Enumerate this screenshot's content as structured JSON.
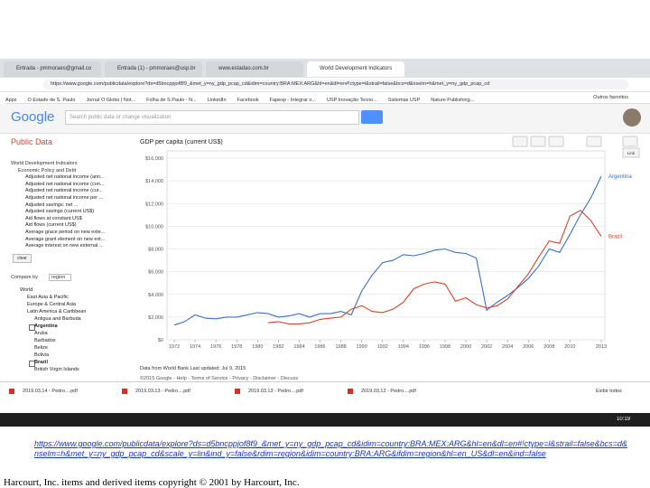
{
  "tabs": [
    "Entrada - pmmoraes@gmail.co",
    "Entrada (1) - pmmoraes@usp.br",
    "www.estadao.com.br",
    "World Development Indicators"
  ],
  "address": "https://www.google.com/publicdata/explore?ds=d5bncppjof8f9_&met_y=ny_gdp_pcap_cd&idim=country:BRA:MEX:ARG&hl=en&dl=en#!ctype=l&strail=false&bcs=d&nselm=h&met_y=ny_gdp_pcap_cd",
  "bookmarks": [
    "Apps",
    "O Estado de S. Paulo",
    "Jornal O Globo | Not...",
    "Folha de S.Paulo - N...",
    "LinkedIn",
    "Facebook",
    "Fapesp - Integrar o...",
    "USP Inovação Tecno...",
    "Sistemas USP",
    "Nature Publishing...",
    "Outros favoritos"
  ],
  "logo": "Google",
  "search_placeholder": "Search public data or change visualization",
  "brand": "Public Data",
  "tree": [
    "World Development Indicators",
    "Economic Policy and Debt",
    "Adjusted net national income (ann...",
    "Adjusted net national income (con...",
    "Adjusted net national income (cur...",
    "Adjusted net national income per ...",
    "Adjusted savings: net ...",
    "Adjusted savings (current US$)",
    "Aid flows at constant US$",
    "Aid flows (current US$)",
    "Average grace period on new exte...",
    "Average grant element on new ext...",
    "Average interest on new external ..."
  ],
  "clear": "clear",
  "compare_by": "Compare by",
  "compare_value": "region",
  "regions": [
    "World",
    "East Asia & Pacific",
    "Europe & Central Asia",
    "Latin America & Caribbean",
    "Antigua and Barbuda",
    "Argentina",
    "Aruba",
    "Barbados",
    "Belize",
    "Bolivia",
    "Brazil",
    "British Virgin Islands"
  ],
  "clear_selections": "Clear selections",
  "link": "Link",
  "chart_data": {
    "type": "line",
    "title": "GDP per capita (current US$)",
    "x": [
      1972,
      1973,
      1974,
      1975,
      1976,
      1977,
      1978,
      1979,
      1980,
      1981,
      1982,
      1983,
      1984,
      1985,
      1986,
      1987,
      1988,
      1989,
      1990,
      1991,
      1992,
      1993,
      1994,
      1995,
      1996,
      1997,
      1998,
      1999,
      2000,
      2001,
      2002,
      2003,
      2004,
      2005,
      2006,
      2007,
      2008,
      2009,
      2010,
      2011,
      2012,
      2013
    ],
    "xlim": [
      1972,
      2013
    ],
    "xticks": [
      1972,
      1974,
      1976,
      1978,
      1980,
      1982,
      1984,
      1986,
      1988,
      1990,
      1992,
      1994,
      1996,
      1998,
      2000,
      2002,
      2004,
      2006,
      2008,
      2010,
      2013
    ],
    "ylim": [
      0,
      16000
    ],
    "yticks": [
      {
        "value": 0,
        "label": "$0"
      },
      {
        "value": 2000,
        "label": "$2,000"
      },
      {
        "value": 4000,
        "label": "$4,000"
      },
      {
        "value": 6000,
        "label": "$6,000"
      },
      {
        "value": 8000,
        "label": "$8,000"
      },
      {
        "value": 10000,
        "label": "$10,000"
      },
      {
        "value": 12000,
        "label": "$12,000"
      },
      {
        "value": 14000,
        "label": "$14,000"
      },
      {
        "value": 16000,
        "label": "$16,000"
      }
    ],
    "grid": true,
    "series": [
      {
        "name": "Argentina",
        "color": "#3a6fc9",
        "values": [
          1300,
          1600,
          2200,
          1900,
          1850,
          2000,
          2000,
          2200,
          2400,
          2300,
          2000,
          2100,
          2300,
          2000,
          2300,
          2300,
          2500,
          2200,
          4300,
          5700,
          6800,
          7000,
          7500,
          7400,
          7600,
          7900,
          8000,
          7700,
          7600,
          7200,
          2600,
          3300,
          3900,
          4600,
          5400,
          6500,
          8000,
          7700,
          9300,
          11000,
          12500,
          14400
        ]
      },
      {
        "name": "Brazil",
        "color": "#d8432c",
        "values": [
          null,
          null,
          null,
          null,
          null,
          null,
          null,
          null,
          null,
          1500,
          1600,
          1400,
          1400,
          1500,
          1800,
          1900,
          2000,
          2700,
          3000,
          2500,
          2400,
          2700,
          3300,
          4500,
          4900,
          5100,
          4900,
          3400,
          3700,
          3100,
          2800,
          3000,
          3600,
          4700,
          5800,
          7300,
          8700,
          8500,
          10900,
          11400,
          10500,
          9100
        ]
      }
    ]
  },
  "footer_source": "Data from World Bank   Last updated: Jul 9, 2015",
  "footer_links": "©2015 Google - Help - Terms of Service - Privacy - Disclaimer - Discuss",
  "downloads": [
    "2019.03.14 - Pedro....pdf",
    "2019.03.13 - Pedro....pdf",
    "2019.03.13 - Pedro....pdf",
    "2019.03.12 - Pedro....pdf"
  ],
  "show_all": "Exibir todos",
  "clock": "10:19",
  "caption_url": "https://www.google.com/publicdata/explore?ds=d5bncppjof8f9_&met_y=ny_gdp_pcap_cd&idim=country:BRA:MEX:ARG&hl=en&dl=en#!ctype=l&strail=false&bcs=d&nselm=h&met_y=ny_gdp_pcap_cd&scale_y=lin&ind_y=false&rdim=region&idim=country:BRA:ARG&ifdim=region&hl=en_US&dl=en&ind=false",
  "copyright": "Harcourt, Inc. items and derived items copyright © 2001 by Harcourt, Inc."
}
